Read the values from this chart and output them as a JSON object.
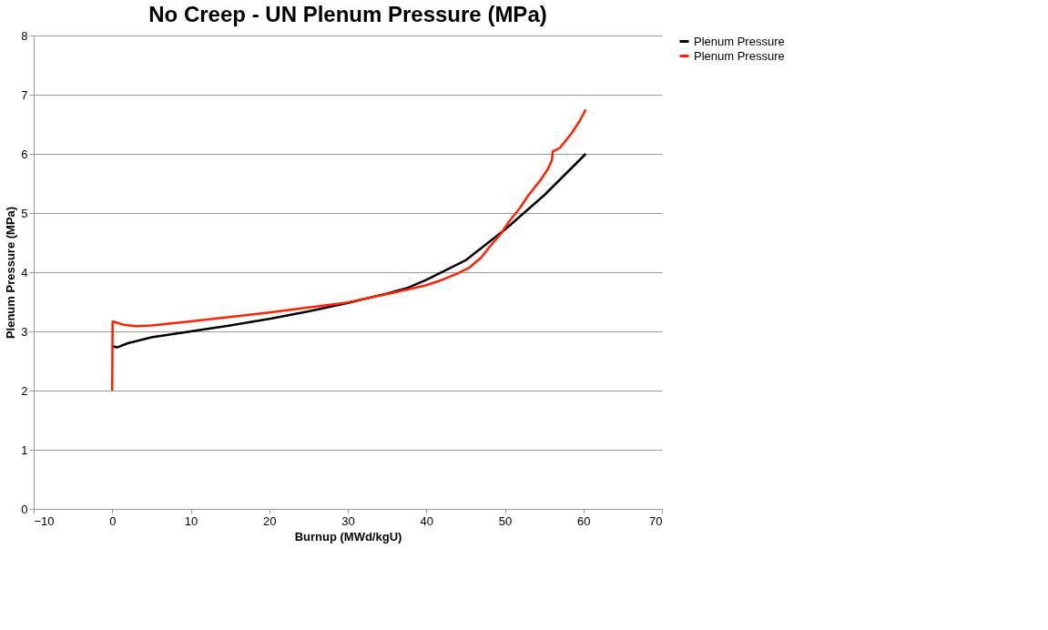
{
  "chart_data": {
    "type": "line",
    "title": "No Creep - UN Plenum Pressure (MPa)",
    "xlabel": "Burnup (MWd/kgU)",
    "ylabel": "Plenum Pressure (MPa)",
    "xlim": [
      -10,
      70
    ],
    "xticks": [
      -10,
      0,
      10,
      20,
      30,
      40,
      50,
      60,
      70
    ],
    "ylim": [
      0,
      8
    ],
    "yticks": [
      0,
      1,
      2,
      3,
      4,
      5,
      6,
      7,
      8
    ],
    "grid": "y",
    "legend": "right",
    "marker": "none",
    "line_style": "solid",
    "series": [
      {
        "name": "Plenum Pressure",
        "color": "#000000",
        "x": [
          0,
          0.6,
          2,
          5,
          10,
          15,
          20,
          25,
          30,
          35,
          37.5,
          40,
          45,
          50,
          55,
          60.3
        ],
        "values": [
          2.75,
          2.73,
          2.8,
          2.9,
          3.0,
          3.1,
          3.21,
          3.34,
          3.48,
          3.64,
          3.73,
          3.87,
          4.2,
          4.72,
          5.3,
          6.0
        ]
      },
      {
        "name": "Plenum Pressure",
        "color": "#ff2000",
        "x": [
          0,
          0.05,
          0.5,
          1.5,
          3,
          5,
          10,
          20,
          30,
          35,
          38,
          40,
          42,
          44,
          45.5,
          47,
          48,
          49.5,
          50.5,
          52,
          53,
          54.5,
          55.5,
          56,
          56.1,
          57,
          58.5,
          59.5,
          60.3
        ],
        "values": [
          2.0,
          3.17,
          3.15,
          3.11,
          3.09,
          3.1,
          3.17,
          3.32,
          3.49,
          3.63,
          3.72,
          3.78,
          3.87,
          3.98,
          4.08,
          4.25,
          4.42,
          4.65,
          4.85,
          5.1,
          5.3,
          5.55,
          5.75,
          5.9,
          6.04,
          6.1,
          6.35,
          6.55,
          6.75
        ]
      }
    ]
  }
}
